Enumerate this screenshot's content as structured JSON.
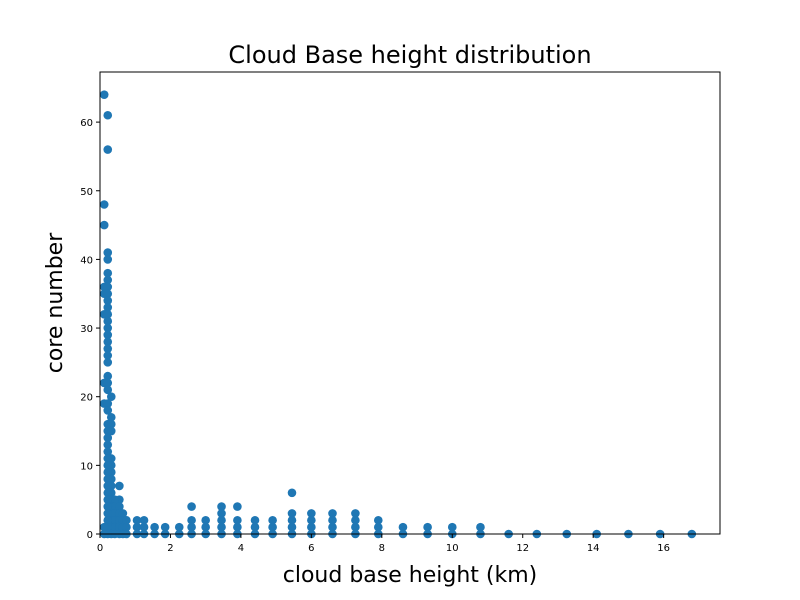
{
  "chart_data": {
    "type": "scatter",
    "title": "Cloud Base height distribution",
    "xlabel": "cloud base height (km)",
    "ylabel": "core number",
    "xlim": [
      0,
      17.6
    ],
    "ylim": [
      0,
      67.3
    ],
    "xticks": [
      0,
      2,
      4,
      6,
      8,
      10,
      12,
      14,
      16
    ],
    "yticks": [
      0,
      10,
      20,
      30,
      40,
      50,
      60
    ],
    "grid": false,
    "marker_color": "#1f77b4",
    "points": [
      [
        0.12,
        64
      ],
      [
        0.22,
        61
      ],
      [
        0.22,
        56
      ],
      [
        0.12,
        48
      ],
      [
        0.12,
        45
      ],
      [
        0.22,
        41
      ],
      [
        0.22,
        40
      ],
      [
        0.22,
        38
      ],
      [
        0.22,
        37
      ],
      [
        0.12,
        36
      ],
      [
        0.22,
        36
      ],
      [
        0.12,
        35
      ],
      [
        0.22,
        35
      ],
      [
        0.22,
        34
      ],
      [
        0.22,
        33
      ],
      [
        0.12,
        32
      ],
      [
        0.22,
        32
      ],
      [
        0.22,
        31
      ],
      [
        0.22,
        30
      ],
      [
        0.22,
        29
      ],
      [
        0.22,
        28
      ],
      [
        0.22,
        27
      ],
      [
        0.22,
        26
      ],
      [
        0.22,
        25
      ],
      [
        0.22,
        23
      ],
      [
        0.12,
        22
      ],
      [
        0.22,
        22
      ],
      [
        0.22,
        21
      ],
      [
        0.32,
        20
      ],
      [
        0.12,
        19
      ],
      [
        0.22,
        19
      ],
      [
        0.22,
        18
      ],
      [
        0.32,
        17
      ],
      [
        0.22,
        16
      ],
      [
        0.32,
        16
      ],
      [
        0.22,
        15
      ],
      [
        0.32,
        15
      ],
      [
        0.22,
        14
      ],
      [
        0.22,
        13
      ],
      [
        0.22,
        12
      ],
      [
        0.32,
        11
      ],
      [
        0.22,
        11
      ],
      [
        0.32,
        10
      ],
      [
        0.22,
        10
      ],
      [
        0.32,
        9
      ],
      [
        0.22,
        9
      ],
      [
        0.32,
        8
      ],
      [
        0.22,
        8
      ],
      [
        0.32,
        7
      ],
      [
        0.55,
        7
      ],
      [
        0.22,
        7
      ],
      [
        0.32,
        6
      ],
      [
        0.22,
        6
      ],
      [
        0.32,
        5
      ],
      [
        0.55,
        5
      ],
      [
        0.42,
        5
      ],
      [
        0.22,
        5
      ],
      [
        0.32,
        4
      ],
      [
        0.42,
        4
      ],
      [
        0.55,
        4
      ],
      [
        0.22,
        4
      ],
      [
        0.32,
        3
      ],
      [
        0.42,
        3
      ],
      [
        0.55,
        3
      ],
      [
        0.65,
        3
      ],
      [
        0.22,
        3
      ],
      [
        0.32,
        2
      ],
      [
        0.42,
        2
      ],
      [
        0.55,
        2
      ],
      [
        0.65,
        2
      ],
      [
        0.75,
        2
      ],
      [
        0.22,
        2
      ],
      [
        0.32,
        1
      ],
      [
        0.42,
        1
      ],
      [
        0.55,
        1
      ],
      [
        0.65,
        1
      ],
      [
        0.75,
        1
      ],
      [
        0.22,
        1
      ],
      [
        0.12,
        1
      ],
      [
        0.32,
        0
      ],
      [
        0.42,
        0
      ],
      [
        0.55,
        0
      ],
      [
        0.65,
        0
      ],
      [
        0.75,
        0
      ],
      [
        0.22,
        0
      ],
      [
        0.12,
        0
      ],
      [
        1.05,
        2
      ],
      [
        1.25,
        2
      ],
      [
        1.05,
        1
      ],
      [
        1.25,
        1
      ],
      [
        1.05,
        0
      ],
      [
        1.25,
        0
      ],
      [
        1.55,
        1
      ],
      [
        1.85,
        1
      ],
      [
        1.55,
        0
      ],
      [
        1.85,
        0
      ],
      [
        2.25,
        1
      ],
      [
        2.25,
        0
      ],
      [
        2.6,
        4
      ],
      [
        2.6,
        2
      ],
      [
        2.6,
        1
      ],
      [
        2.6,
        0
      ],
      [
        3.0,
        2
      ],
      [
        3.0,
        1
      ],
      [
        3.0,
        0
      ],
      [
        3.45,
        4
      ],
      [
        3.45,
        3
      ],
      [
        3.45,
        2
      ],
      [
        3.45,
        1
      ],
      [
        3.45,
        0
      ],
      [
        3.9,
        4
      ],
      [
        3.9,
        2
      ],
      [
        3.9,
        1
      ],
      [
        3.9,
        0
      ],
      [
        4.4,
        2
      ],
      [
        4.4,
        1
      ],
      [
        4.4,
        0
      ],
      [
        4.9,
        2
      ],
      [
        4.9,
        1
      ],
      [
        4.9,
        0
      ],
      [
        5.45,
        6
      ],
      [
        5.45,
        3
      ],
      [
        5.45,
        2
      ],
      [
        5.45,
        1
      ],
      [
        5.45,
        0
      ],
      [
        6.0,
        3
      ],
      [
        6.0,
        2
      ],
      [
        6.0,
        1
      ],
      [
        6.0,
        0
      ],
      [
        6.6,
        3
      ],
      [
        6.6,
        2
      ],
      [
        6.6,
        1
      ],
      [
        6.6,
        0
      ],
      [
        7.25,
        3
      ],
      [
        7.25,
        2
      ],
      [
        7.25,
        1
      ],
      [
        7.25,
        0
      ],
      [
        7.9,
        2
      ],
      [
        7.9,
        1
      ],
      [
        7.9,
        0
      ],
      [
        8.6,
        1
      ],
      [
        8.6,
        0
      ],
      [
        9.3,
        1
      ],
      [
        9.3,
        0
      ],
      [
        10.0,
        1
      ],
      [
        10.0,
        0
      ],
      [
        10.8,
        1
      ],
      [
        10.8,
        0
      ],
      [
        11.6,
        0
      ],
      [
        12.4,
        0
      ],
      [
        13.25,
        0
      ],
      [
        14.1,
        0
      ],
      [
        15.0,
        0
      ],
      [
        15.9,
        0
      ],
      [
        16.8,
        0
      ]
    ]
  }
}
